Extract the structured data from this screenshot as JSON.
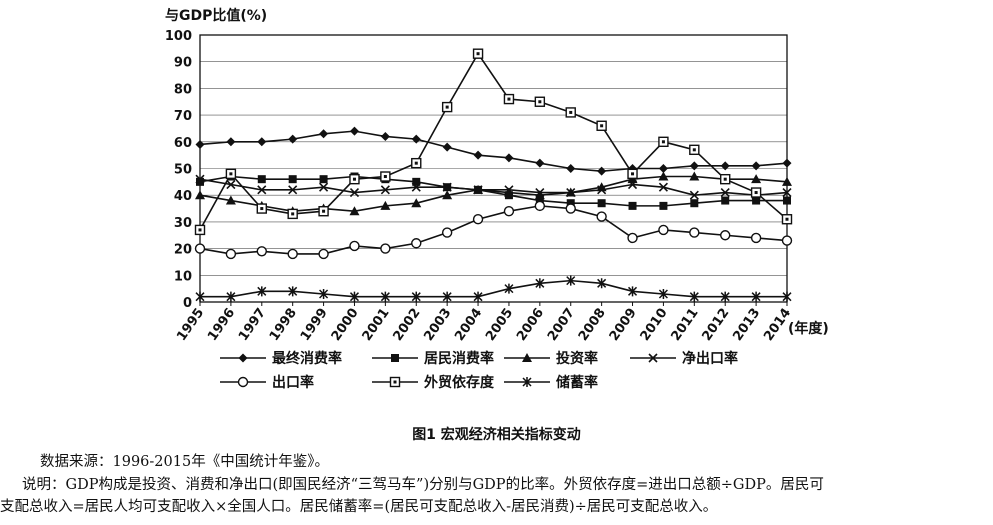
{
  "chart_data": {
    "type": "line",
    "title": "",
    "ylabel": "与GDP比值(%)",
    "xlabel": "(年度)",
    "ylim": [
      0,
      100
    ],
    "yticks": [
      0,
      10,
      20,
      30,
      40,
      50,
      60,
      70,
      80,
      90,
      100
    ],
    "categories": [
      "1995",
      "1996",
      "1997",
      "1998",
      "1999",
      "2000",
      "2001",
      "2002",
      "2003",
      "2004",
      "2005",
      "2006",
      "2007",
      "2008",
      "2009",
      "2010",
      "2011",
      "2012",
      "2013",
      "2014"
    ],
    "grid": true,
    "legend_position": "bottom",
    "series": [
      {
        "name": "最终消费率",
        "marker": "diamond",
        "values": [
          59,
          60,
          60,
          61,
          63,
          64,
          62,
          61,
          58,
          55,
          54,
          52,
          50,
          49,
          50,
          50,
          51,
          51,
          51,
          52
        ]
      },
      {
        "name": "居民消费率",
        "marker": "square",
        "values": [
          45,
          47,
          46,
          46,
          46,
          47,
          46,
          45,
          43,
          42,
          40,
          38,
          37,
          37,
          36,
          36,
          37,
          38,
          38,
          38
        ]
      },
      {
        "name": "投资率",
        "marker": "triangle",
        "values": [
          40,
          38,
          36,
          34,
          35,
          34,
          36,
          37,
          40,
          42,
          41,
          40,
          41,
          43,
          46,
          47,
          47,
          46,
          46,
          45
        ]
      },
      {
        "name": "净出口率",
        "marker": "x",
        "values": [
          46,
          44,
          42,
          42,
          43,
          41,
          42,
          43,
          43,
          42,
          42,
          41,
          41,
          42,
          44,
          43,
          40,
          41,
          40,
          41
        ]
      },
      {
        "name": "出口率",
        "marker": "circle",
        "values": [
          20,
          18,
          19,
          18,
          18,
          21,
          20,
          22,
          26,
          31,
          34,
          36,
          35,
          32,
          24,
          27,
          26,
          25,
          24,
          23
        ]
      },
      {
        "name": "外贸依存度",
        "marker": "boxed-dot",
        "values": [
          27,
          48,
          35,
          33,
          34,
          46,
          47,
          52,
          73,
          93,
          76,
          75,
          71,
          66,
          48,
          60,
          57,
          46,
          41,
          31
        ]
      },
      {
        "name": "储蓄率",
        "marker": "star",
        "values": [
          2,
          2,
          4,
          4,
          3,
          2,
          2,
          2,
          2,
          2,
          5,
          7,
          8,
          7,
          4,
          3,
          2,
          2,
          2,
          2
        ]
      }
    ]
  },
  "figure": {
    "caption": "图1  宏观经济相关指标变动"
  },
  "notes": {
    "source": "数据来源：1996-2015年《中国统计年鉴》。",
    "explain_line1": "说明：GDP构成是投资、消费和净出口(即国民经济“三驾马车”)分别与GDP的比率。外贸依存度=进出口总额÷GDP。居民可",
    "explain_line2": "支配总收入=居民人均可支配收入×全国人口。居民储蓄率=(居民可支配总收入-居民消费)÷居民可支配总收入。"
  }
}
